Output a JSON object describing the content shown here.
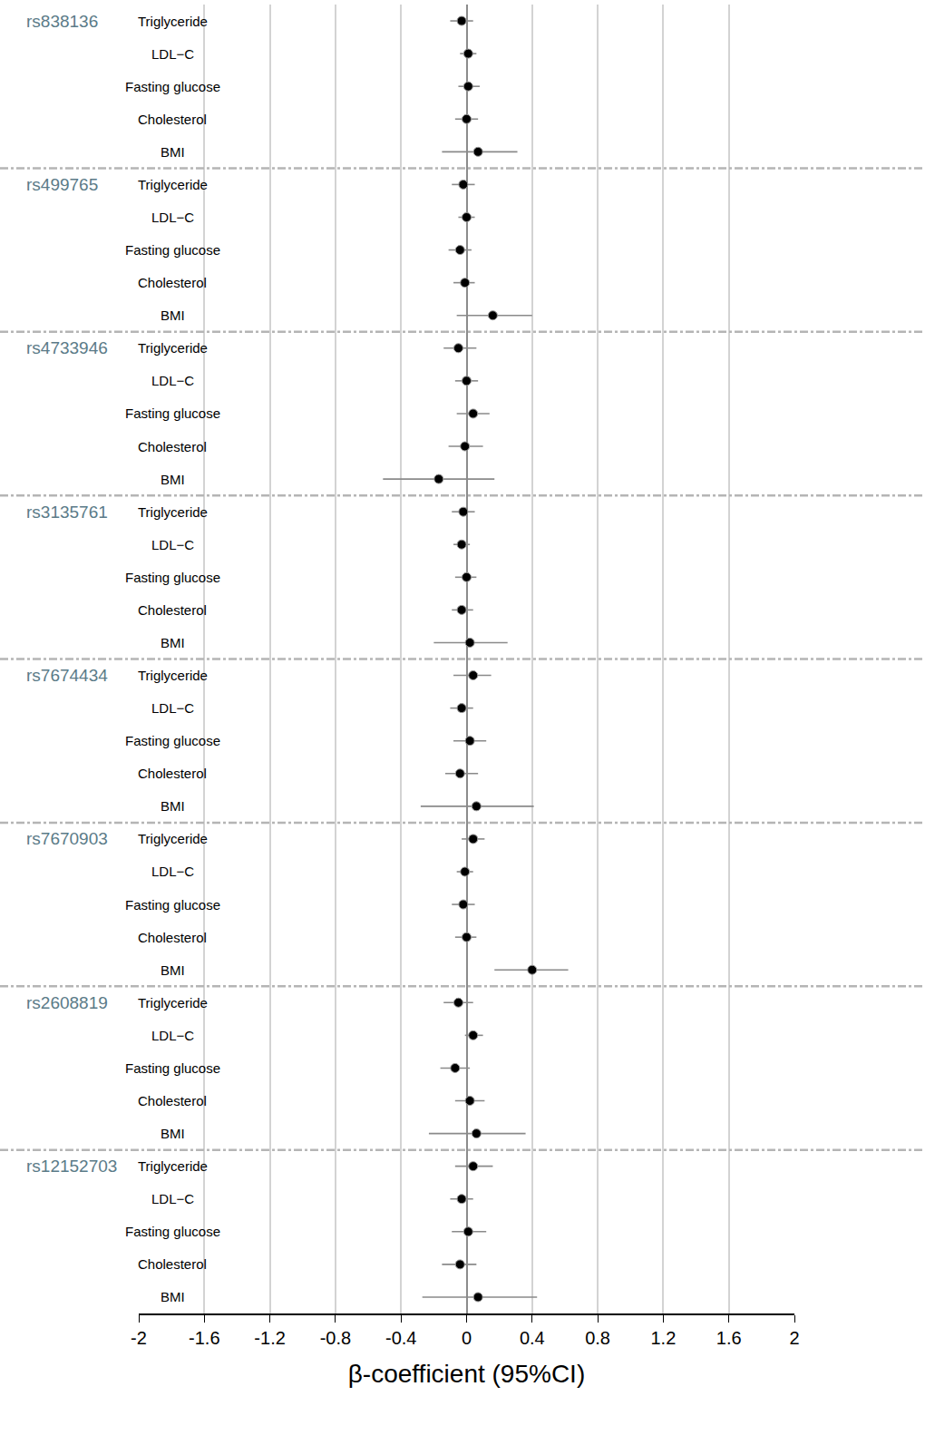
{
  "chart_data": {
    "type": "forest",
    "x_label": "β-coefficient (95%CI)",
    "xlim": [
      -2,
      2
    ],
    "xticks": [
      -2,
      -1.6,
      -1.2,
      -0.8,
      -0.4,
      0,
      0.4,
      0.8,
      1.2,
      1.6,
      2
    ],
    "grid": true,
    "color": "#000000",
    "marker": "circle",
    "groups": [
      {
        "name": "rs838136",
        "categories": [
          "Triglyceride",
          "LDL−C",
          "Fasting glucose",
          "Cholesterol",
          "BMI"
        ],
        "values": [
          -0.03,
          0.01,
          0.01,
          0.0,
          0.07
        ],
        "lower": [
          -0.1,
          -0.04,
          -0.05,
          -0.07,
          -0.15
        ],
        "upper": [
          0.04,
          0.06,
          0.08,
          0.07,
          0.31
        ]
      },
      {
        "name": "rs499765",
        "categories": [
          "Triglyceride",
          "LDL−C",
          "Fasting glucose",
          "Cholesterol",
          "BMI"
        ],
        "values": [
          -0.02,
          0.0,
          -0.04,
          -0.01,
          0.16
        ],
        "lower": [
          -0.09,
          -0.05,
          -0.11,
          -0.08,
          -0.06
        ],
        "upper": [
          0.05,
          0.05,
          0.03,
          0.05,
          0.4
        ]
      },
      {
        "name": "rs4733946",
        "categories": [
          "Triglyceride",
          "LDL−C",
          "Fasting glucose",
          "Cholesterol",
          "BMI"
        ],
        "values": [
          -0.05,
          0.0,
          0.04,
          -0.01,
          -0.17
        ],
        "lower": [
          -0.14,
          -0.07,
          -0.06,
          -0.11,
          -0.51
        ],
        "upper": [
          0.06,
          0.07,
          0.14,
          0.1,
          0.17
        ]
      },
      {
        "name": "rs3135761",
        "categories": [
          "Triglyceride",
          "LDL−C",
          "Fasting glucose",
          "Cholesterol",
          "BMI"
        ],
        "values": [
          -0.02,
          -0.03,
          0.0,
          -0.03,
          0.02
        ],
        "lower": [
          -0.09,
          -0.08,
          -0.07,
          -0.09,
          -0.2
        ],
        "upper": [
          0.05,
          0.02,
          0.06,
          0.04,
          0.25
        ]
      },
      {
        "name": "rs7674434",
        "categories": [
          "Triglyceride",
          "LDL−C",
          "Fasting glucose",
          "Cholesterol",
          "BMI"
        ],
        "values": [
          0.04,
          -0.03,
          0.02,
          -0.04,
          0.06
        ],
        "lower": [
          -0.08,
          -0.1,
          -0.08,
          -0.13,
          -0.28
        ],
        "upper": [
          0.15,
          0.04,
          0.12,
          0.07,
          0.41
        ]
      },
      {
        "name": "rs7670903",
        "categories": [
          "Triglyceride",
          "LDL−C",
          "Fasting glucose",
          "Cholesterol",
          "BMI"
        ],
        "values": [
          0.04,
          -0.01,
          -0.02,
          0.0,
          0.4
        ],
        "lower": [
          -0.03,
          -0.06,
          -0.09,
          -0.07,
          0.17
        ],
        "upper": [
          0.11,
          0.04,
          0.05,
          0.06,
          0.62
        ]
      },
      {
        "name": "rs2608819",
        "categories": [
          "Triglyceride",
          "LDL−C",
          "Fasting glucose",
          "Cholesterol",
          "BMI"
        ],
        "values": [
          -0.05,
          0.04,
          -0.07,
          0.02,
          0.06
        ],
        "lower": [
          -0.14,
          -0.01,
          -0.16,
          -0.07,
          -0.23
        ],
        "upper": [
          0.04,
          0.1,
          0.02,
          0.11,
          0.36
        ]
      },
      {
        "name": "rs12152703",
        "categories": [
          "Triglyceride",
          "LDL−C",
          "Fasting glucose",
          "Cholesterol",
          "BMI"
        ],
        "values": [
          0.04,
          -0.03,
          0.01,
          -0.04,
          0.07
        ],
        "lower": [
          -0.07,
          -0.1,
          -0.09,
          -0.15,
          -0.27
        ],
        "upper": [
          0.16,
          0.04,
          0.12,
          0.06,
          0.43
        ]
      }
    ]
  }
}
